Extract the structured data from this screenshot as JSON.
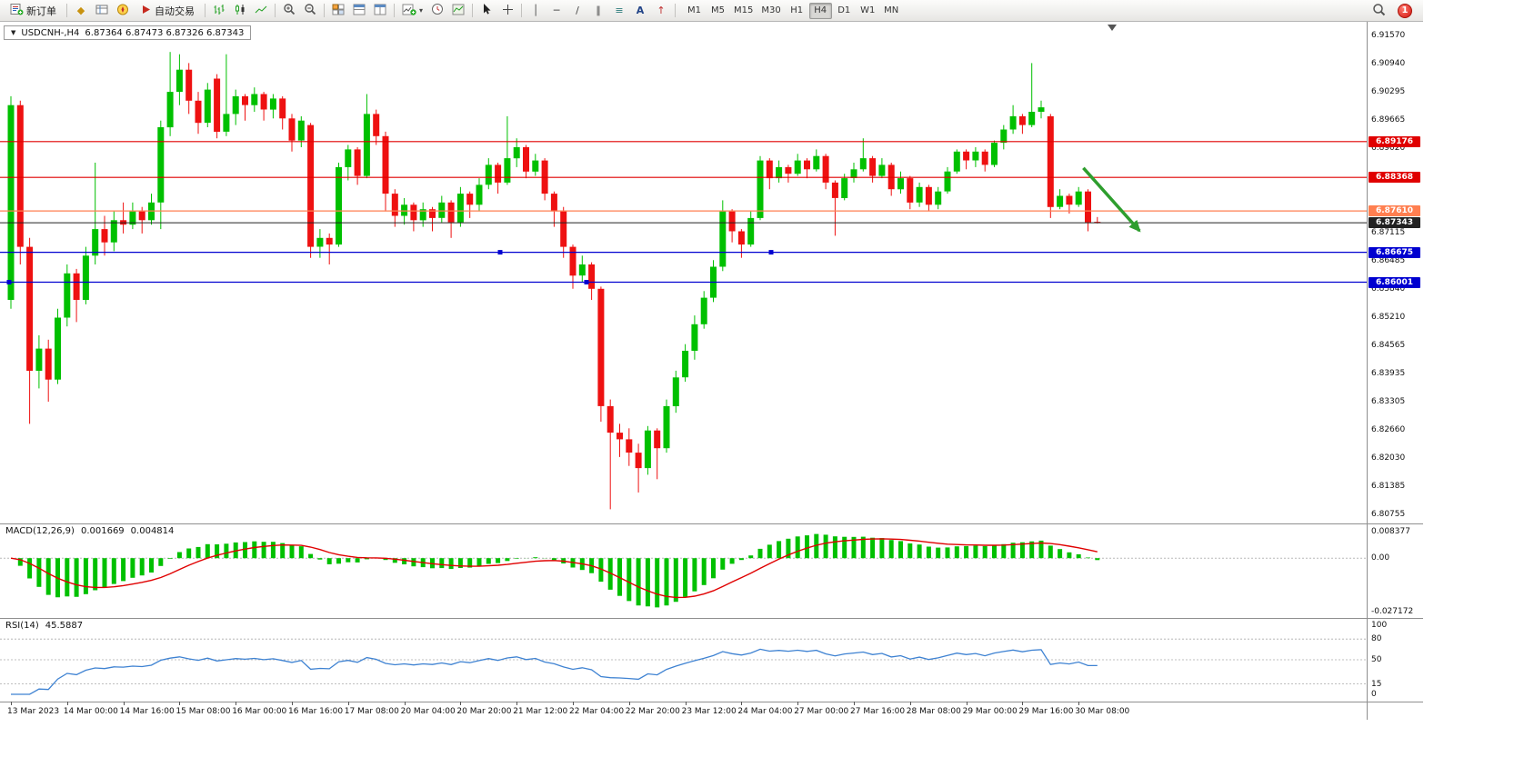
{
  "toolbar": {
    "new_order_label": "新订单",
    "auto_trading_label": "自动交易",
    "timeframes": [
      "M1",
      "M5",
      "M15",
      "M30",
      "H1",
      "H4",
      "D1",
      "W1",
      "MN"
    ],
    "active_timeframe": "H4",
    "notification_count": "1"
  },
  "icons": {
    "market_watch": "◆",
    "crosshair": "+",
    "vline": "│",
    "hline": "─",
    "trendline": "/",
    "channel": "∥",
    "fibonacci": "≡",
    "text_tool": "A",
    "arrows_tool": "↑",
    "dropdown_caret": "▾",
    "symbol_dropdown": "▼"
  },
  "chart": {
    "title": "USDCNH-,H4",
    "ohlc": "6.87364 6.87473 6.87326 6.87343"
  },
  "macd": {
    "label": "MACD(12,26,9)",
    "value_main": "0.001669",
    "value_signal": "0.004814",
    "axis_top": "0.008377",
    "axis_zero": "0.00",
    "axis_bottom": "-0.027172"
  },
  "rsi": {
    "label": "RSI(14)",
    "value": "45.5887",
    "period": 14,
    "levels": [
      80,
      50,
      15
    ],
    "axis_top": "100",
    "axis_bottom": "0"
  },
  "chart_data": {
    "type": "candlestick",
    "symbol": "USDCNH-",
    "timeframe": "H4",
    "y_axis": {
      "min": 6.8055,
      "max": 6.918
    },
    "colors": {
      "up": "#00C000",
      "down": "#EE1111",
      "macd_hist": "#00C000",
      "macd_signal": "#E00000",
      "rsi_line": "#3E82D2",
      "current_price": "#222222"
    },
    "price_ticks": [
      "6.91570",
      "6.90940",
      "6.90295",
      "6.89665",
      "6.89020",
      "6.87115",
      "6.86485",
      "6.85840",
      "6.85210",
      "6.84565",
      "6.83935",
      "6.83305",
      "6.82660",
      "6.82030",
      "6.81385",
      "6.80755"
    ],
    "hlines": [
      {
        "price": 6.89176,
        "label": "6.89176",
        "color": "#E00000",
        "width": 1.2
      },
      {
        "price": 6.88368,
        "label": "6.88368",
        "color": "#E00000",
        "width": 1.2
      },
      {
        "price": 6.8761,
        "label": "6.87610",
        "color": "#FF7F50",
        "width": 1.2
      },
      {
        "price": 6.87343,
        "label": "6.87343",
        "color": "#222222",
        "width": 1,
        "role": "current-price"
      },
      {
        "price": 6.86675,
        "label": "6.86675",
        "color": "#0000D0",
        "width": 1.3,
        "handles": [
          550,
          848
        ]
      },
      {
        "price": 6.86001,
        "label": "6.86001",
        "color": "#0000D0",
        "width": 1.3,
        "handles": [
          10,
          645
        ]
      }
    ],
    "arrow": {
      "bar_from": 114.5,
      "price_from": 6.8858,
      "bar_to": 120.5,
      "price_to": 6.8716,
      "color": "#2E9E2E",
      "direction": "down"
    },
    "time_labels": [
      "13 Mar 2023",
      "14 Mar 00:00",
      "14 Mar 16:00",
      "15 Mar 08:00",
      "16 Mar 00:00",
      "16 Mar 16:00",
      "17 Mar 08:00",
      "20 Mar 04:00",
      "20 Mar 20:00",
      "21 Mar 12:00",
      "22 Mar 04:00",
      "22 Mar 20:00",
      "23 Mar 12:00",
      "24 Mar 04:00",
      "27 Mar 00:00",
      "27 Mar 16:00",
      "28 Mar 08:00",
      "29 Mar 00:00",
      "29 Mar 16:00",
      "30 Mar 08:00"
    ],
    "candles": [
      [
        6.856,
        6.902,
        6.854,
        6.9
      ],
      [
        6.9,
        6.901,
        6.864,
        6.868
      ],
      [
        6.868,
        6.87,
        6.828,
        6.84
      ],
      [
        6.84,
        6.848,
        6.836,
        6.845
      ],
      [
        6.845,
        6.847,
        6.833,
        6.838
      ],
      [
        6.838,
        6.854,
        6.837,
        6.852
      ],
      [
        6.852,
        6.864,
        6.85,
        6.862
      ],
      [
        6.862,
        6.863,
        6.851,
        6.856
      ],
      [
        6.856,
        6.868,
        6.855,
        6.866
      ],
      [
        6.866,
        6.887,
        6.864,
        6.872
      ],
      [
        6.872,
        6.875,
        6.866,
        6.869
      ],
      [
        6.869,
        6.876,
        6.867,
        6.874
      ],
      [
        6.874,
        6.878,
        6.871,
        6.873
      ],
      [
        6.873,
        6.878,
        6.872,
        6.876
      ],
      [
        6.876,
        6.877,
        6.871,
        6.874
      ],
      [
        6.874,
        6.88,
        6.873,
        6.878
      ],
      [
        6.878,
        6.8965,
        6.872,
        6.895
      ],
      [
        6.895,
        6.912,
        6.893,
        6.903
      ],
      [
        6.903,
        6.9115,
        6.9,
        6.908
      ],
      [
        6.908,
        6.9095,
        6.898,
        6.901
      ],
      [
        6.901,
        6.903,
        6.8935,
        6.896
      ],
      [
        6.896,
        6.905,
        6.895,
        6.9035
      ],
      [
        6.906,
        6.907,
        6.8925,
        6.894
      ],
      [
        6.894,
        6.9115,
        6.893,
        6.898
      ],
      [
        6.898,
        6.9035,
        6.8955,
        6.902
      ],
      [
        6.902,
        6.9025,
        6.8965,
        6.9
      ],
      [
        6.9,
        6.904,
        6.8985,
        6.9025
      ],
      [
        6.9025,
        6.903,
        6.8965,
        6.899
      ],
      [
        6.899,
        6.9025,
        6.897,
        6.9015
      ],
      [
        6.9015,
        6.902,
        6.8945,
        6.897
      ],
      [
        6.897,
        6.898,
        6.8895,
        6.892
      ],
      [
        6.892,
        6.8975,
        6.8905,
        6.8965
      ],
      [
        6.8955,
        6.896,
        6.8655,
        6.868
      ],
      [
        6.868,
        6.872,
        6.8655,
        6.87
      ],
      [
        6.87,
        6.871,
        6.864,
        6.8685
      ],
      [
        6.8685,
        6.887,
        6.868,
        6.886
      ],
      [
        6.886,
        6.891,
        6.883,
        6.89
      ],
      [
        6.89,
        6.8905,
        6.882,
        6.884
      ],
      [
        6.884,
        6.9025,
        6.8835,
        6.898
      ],
      [
        6.898,
        6.899,
        6.891,
        6.893
      ],
      [
        6.893,
        6.894,
        6.876,
        6.88
      ],
      [
        6.88,
        6.881,
        6.8725,
        6.875
      ],
      [
        6.875,
        6.879,
        6.873,
        6.8775
      ],
      [
        6.8775,
        6.878,
        6.8715,
        6.874
      ],
      [
        6.874,
        6.878,
        6.8725,
        6.8765
      ],
      [
        6.8765,
        6.877,
        6.8715,
        6.8745
      ],
      [
        6.8745,
        6.8795,
        6.8735,
        6.878
      ],
      [
        6.878,
        6.8785,
        6.87,
        6.8735
      ],
      [
        6.8735,
        6.8815,
        6.8725,
        6.88
      ],
      [
        6.88,
        6.8805,
        6.8745,
        6.8775
      ],
      [
        6.8775,
        6.8835,
        6.876,
        6.882
      ],
      [
        6.882,
        6.888,
        6.881,
        6.8865
      ],
      [
        6.8865,
        6.887,
        6.88,
        6.8825
      ],
      [
        6.8825,
        6.8975,
        6.882,
        6.888
      ],
      [
        6.888,
        6.8925,
        6.886,
        6.8905
      ],
      [
        6.8905,
        6.891,
        6.8835,
        6.885
      ],
      [
        6.885,
        6.889,
        6.884,
        6.8875
      ],
      [
        6.8875,
        6.888,
        6.8785,
        6.88
      ],
      [
        6.88,
        6.8805,
        6.8725,
        6.876
      ],
      [
        6.876,
        6.877,
        6.8655,
        6.868
      ],
      [
        6.868,
        6.8685,
        6.8585,
        6.8615
      ],
      [
        6.8615,
        6.866,
        6.86,
        6.864
      ],
      [
        6.864,
        6.8645,
        6.856,
        6.8585
      ],
      [
        6.8585,
        6.859,
        6.8285,
        6.832
      ],
      [
        6.832,
        6.8335,
        6.8087,
        6.826
      ],
      [
        6.826,
        6.828,
        6.8205,
        6.8245
      ],
      [
        6.8245,
        6.827,
        6.8185,
        6.8215
      ],
      [
        6.8215,
        6.8235,
        6.8125,
        6.818
      ],
      [
        6.818,
        6.8275,
        6.8165,
        6.8265
      ],
      [
        6.8265,
        6.827,
        6.8155,
        6.8225
      ],
      [
        6.8225,
        6.8335,
        6.8215,
        6.832
      ],
      [
        6.832,
        6.84,
        6.8305,
        6.8385
      ],
      [
        6.8385,
        6.846,
        6.8375,
        6.8445
      ],
      [
        6.8445,
        6.8525,
        6.8425,
        6.8505
      ],
      [
        6.8505,
        6.858,
        6.8495,
        6.8565
      ],
      [
        6.8565,
        6.865,
        6.8555,
        6.8635
      ],
      [
        6.8635,
        6.8785,
        6.8625,
        6.876
      ],
      [
        6.876,
        6.8765,
        6.869,
        6.8715
      ],
      [
        6.8715,
        6.872,
        6.8655,
        6.8685
      ],
      [
        6.8685,
        6.876,
        6.868,
        6.8745
      ],
      [
        6.8745,
        6.8885,
        6.874,
        6.8875
      ],
      [
        6.8875,
        6.888,
        6.881,
        6.8835
      ],
      [
        6.8835,
        6.8875,
        6.8825,
        6.886
      ],
      [
        6.886,
        6.8865,
        6.8825,
        6.8845
      ],
      [
        6.8845,
        6.889,
        6.884,
        6.8875
      ],
      [
        6.8875,
        6.888,
        6.8835,
        6.8855
      ],
      [
        6.8855,
        6.89,
        6.885,
        6.8885
      ],
      [
        6.8885,
        6.889,
        6.881,
        6.8825
      ],
      [
        6.8825,
        6.883,
        6.8705,
        6.879
      ],
      [
        6.879,
        6.8845,
        6.8785,
        6.8835
      ],
      [
        6.8835,
        6.887,
        6.8825,
        6.8855
      ],
      [
        6.8855,
        6.8925,
        6.885,
        6.888
      ],
      [
        6.888,
        6.8885,
        6.8825,
        6.884
      ],
      [
        6.884,
        6.888,
        6.8835,
        6.8865
      ],
      [
        6.8865,
        6.887,
        6.8795,
        6.881
      ],
      [
        6.881,
        6.885,
        6.88,
        6.8835
      ],
      [
        6.8835,
        6.884,
        6.8765,
        6.878
      ],
      [
        6.878,
        6.8825,
        6.877,
        6.8815
      ],
      [
        6.8815,
        6.882,
        6.876,
        6.8775
      ],
      [
        6.8775,
        6.8815,
        6.8765,
        6.8805
      ],
      [
        6.8805,
        6.886,
        6.88,
        6.885
      ],
      [
        6.885,
        6.89,
        6.8845,
        6.8895
      ],
      [
        6.8895,
        6.89,
        6.8855,
        6.8875
      ],
      [
        6.8875,
        6.8905,
        6.886,
        6.8895
      ],
      [
        6.8895,
        6.89,
        6.885,
        6.8865
      ],
      [
        6.8865,
        6.892,
        6.886,
        6.8915
      ],
      [
        6.8915,
        6.8955,
        6.89,
        6.8945
      ],
      [
        6.8945,
        6.9,
        6.8935,
        6.8975
      ],
      [
        6.8975,
        6.898,
        6.8935,
        6.8955
      ],
      [
        6.8955,
        6.9095,
        6.895,
        6.8985
      ],
      [
        6.8985,
        6.901,
        6.897,
        6.8995
      ],
      [
        6.8975,
        6.898,
        6.8745,
        6.877
      ],
      [
        6.877,
        6.881,
        6.8765,
        6.8795
      ],
      [
        6.8795,
        6.88,
        6.8755,
        6.8775
      ],
      [
        6.8775,
        6.8815,
        6.877,
        6.8805
      ],
      [
        6.8805,
        6.881,
        6.8715,
        6.8735
      ],
      [
        6.87364,
        6.87473,
        6.87326,
        6.87343
      ]
    ]
  }
}
